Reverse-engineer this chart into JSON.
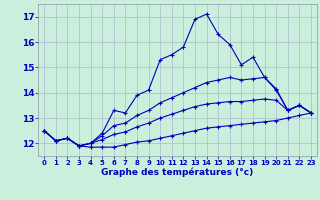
{
  "xlabel": "Graphe des températures (°c)",
  "background_color": "#cceedd",
  "grid_color": "#aabbcc",
  "line_color": "#0000bb",
  "hours": [
    0,
    1,
    2,
    3,
    4,
    5,
    6,
    7,
    8,
    9,
    10,
    11,
    12,
    13,
    14,
    15,
    16,
    17,
    18,
    19,
    20,
    21,
    22,
    23
  ],
  "line1": [
    12.5,
    12.1,
    12.2,
    11.9,
    12.0,
    12.4,
    13.3,
    13.2,
    13.9,
    14.1,
    15.3,
    15.5,
    15.8,
    16.9,
    17.1,
    16.3,
    15.9,
    15.1,
    15.4,
    14.6,
    14.1,
    13.3,
    13.5,
    13.2
  ],
  "line2": [
    12.5,
    12.1,
    12.2,
    11.9,
    12.0,
    12.3,
    12.7,
    12.8,
    13.1,
    13.3,
    13.6,
    13.8,
    14.0,
    14.2,
    14.4,
    14.5,
    14.6,
    14.5,
    14.55,
    14.6,
    14.15,
    13.3,
    13.5,
    13.2
  ],
  "line3": [
    12.5,
    12.1,
    12.2,
    11.9,
    12.0,
    12.15,
    12.35,
    12.45,
    12.65,
    12.8,
    13.0,
    13.15,
    13.3,
    13.45,
    13.55,
    13.6,
    13.65,
    13.65,
    13.7,
    13.75,
    13.7,
    13.3,
    13.5,
    13.2
  ],
  "line4": [
    12.5,
    12.1,
    12.2,
    11.9,
    11.85,
    11.85,
    11.85,
    11.95,
    12.05,
    12.1,
    12.2,
    12.3,
    12.4,
    12.5,
    12.6,
    12.65,
    12.7,
    12.75,
    12.8,
    12.85,
    12.9,
    13.0,
    13.1,
    13.2
  ],
  "ylim": [
    11.5,
    17.5
  ],
  "yticks": [
    12,
    13,
    14,
    15,
    16,
    17
  ],
  "xticks": [
    0,
    1,
    2,
    3,
    4,
    5,
    6,
    7,
    8,
    9,
    10,
    11,
    12,
    13,
    14,
    15,
    16,
    17,
    18,
    19,
    20,
    21,
    22,
    23
  ]
}
